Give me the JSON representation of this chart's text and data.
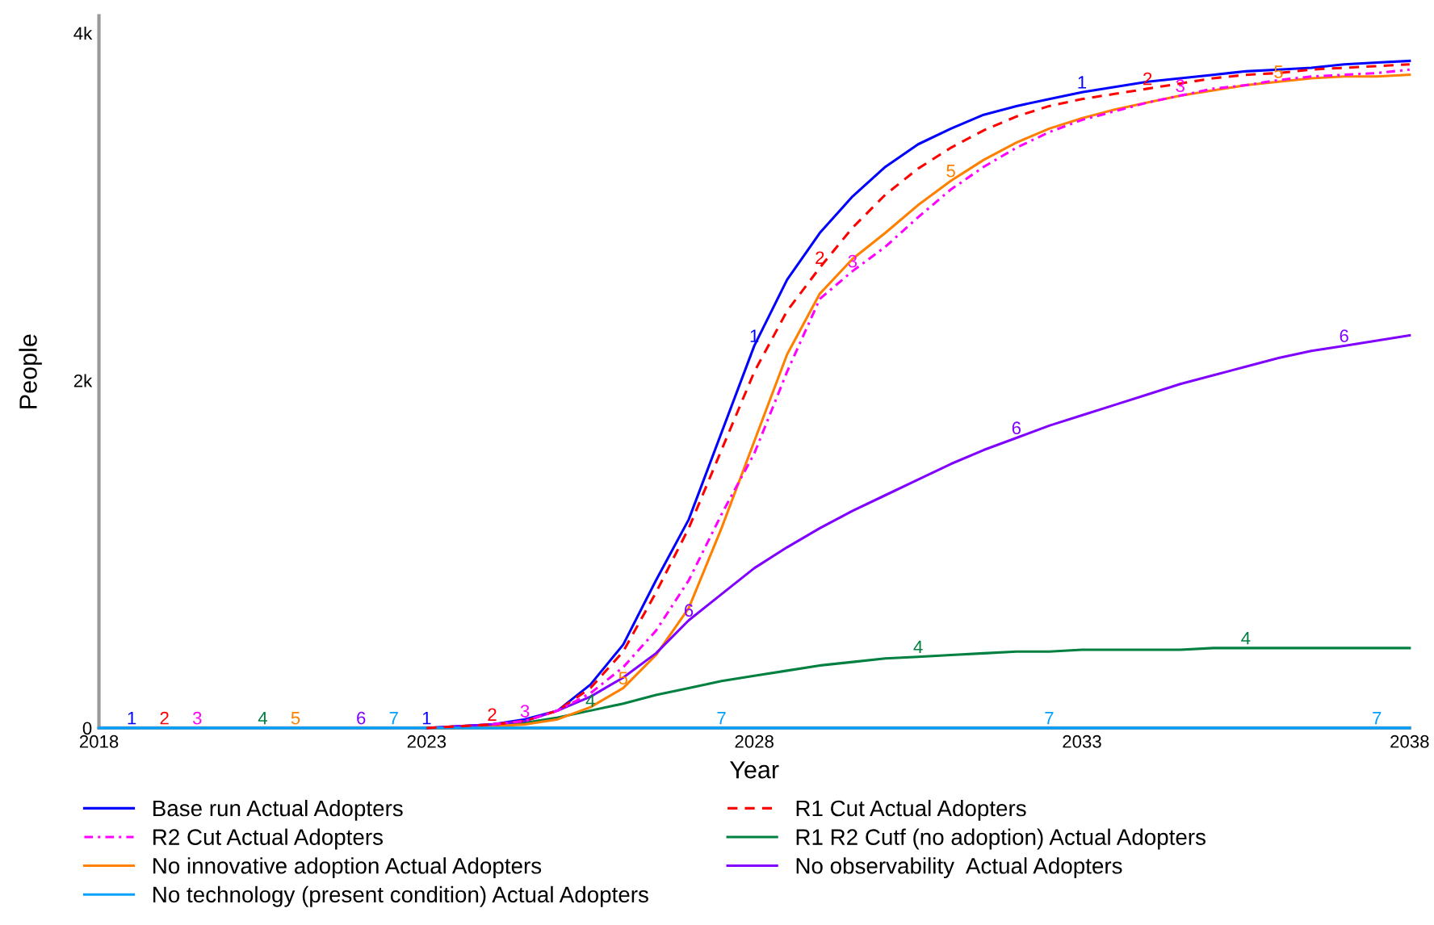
{
  "chart_data": {
    "type": "line",
    "xlabel": "Year",
    "ylabel": "People",
    "x": [
      2018,
      2018.5,
      2019,
      2019.5,
      2020,
      2020.5,
      2021,
      2021.5,
      2022,
      2022.5,
      2023,
      2023.5,
      2024,
      2024.5,
      2025,
      2025.5,
      2026,
      2026.5,
      2027,
      2027.5,
      2028,
      2028.5,
      2029,
      2029.5,
      2030,
      2030.5,
      2031,
      2031.5,
      2032,
      2032.5,
      2033,
      2033.5,
      2034,
      2034.5,
      2035,
      2035.5,
      2036,
      2036.5,
      2037,
      2037.5,
      2038
    ],
    "xlim": [
      2018,
      2038
    ],
    "xticks": [
      2018,
      2023,
      2028,
      2033,
      2038
    ],
    "ylim": [
      0,
      4100
    ],
    "yticks": [
      0,
      {
        "value": 2000,
        "label": "2k"
      },
      {
        "value": 4000,
        "label": "4k"
      }
    ],
    "grid": false,
    "legend": "bottom",
    "series": [
      {
        "name": "Base run Actual Adopters",
        "color": "#0000ff",
        "line_style": "solid",
        "values": [
          null,
          null,
          null,
          null,
          null,
          null,
          null,
          null,
          null,
          null,
          0,
          10,
          20,
          50,
          100,
          250,
          480,
          850,
          1200,
          1700,
          2200,
          2580,
          2850,
          3060,
          3230,
          3360,
          3450,
          3530,
          3580,
          3620,
          3660,
          3690,
          3720,
          3740,
          3760,
          3780,
          3790,
          3800,
          3820,
          3830,
          3840
        ]
      },
      {
        "name": "R1 Cut Actual Adopters",
        "color": "#ff0000",
        "line_style": "dashed",
        "values": [
          null,
          null,
          null,
          null,
          null,
          null,
          null,
          null,
          null,
          null,
          0,
          10,
          20,
          40,
          100,
          230,
          440,
          780,
          1150,
          1600,
          2050,
          2400,
          2650,
          2880,
          3070,
          3220,
          3340,
          3440,
          3520,
          3580,
          3620,
          3650,
          3680,
          3710,
          3740,
          3760,
          3770,
          3790,
          3800,
          3810,
          3820
        ]
      },
      {
        "name": "R2 Cut Actual Adopters",
        "color": "#ff00ff",
        "line_style": "dashdot",
        "values": [
          null,
          null,
          null,
          null,
          null,
          null,
          null,
          null,
          null,
          null,
          null,
          null,
          20,
          40,
          100,
          200,
          350,
          560,
          850,
          1230,
          1580,
          2050,
          2470,
          2630,
          2770,
          2940,
          3100,
          3230,
          3340,
          3430,
          3500,
          3550,
          3600,
          3640,
          3680,
          3700,
          3730,
          3750,
          3760,
          3770,
          3790
        ]
      },
      {
        "name": "R1 R2 Cutf (no adoption) Actual Adopters",
        "color": "#008040",
        "line_style": "solid",
        "values": [
          null,
          null,
          null,
          null,
          null,
          null,
          null,
          null,
          null,
          null,
          null,
          null,
          10,
          30,
          60,
          100,
          140,
          190,
          230,
          270,
          300,
          330,
          360,
          380,
          400,
          410,
          420,
          430,
          440,
          440,
          450,
          450,
          450,
          450,
          460,
          460,
          460,
          460,
          460,
          460,
          460
        ]
      },
      {
        "name": "No innovative adoption Actual Adopters",
        "color": "#ff8000",
        "line_style": "solid",
        "values": [
          null,
          null,
          null,
          null,
          null,
          null,
          null,
          null,
          null,
          null,
          0,
          0,
          10,
          20,
          50,
          120,
          230,
          420,
          690,
          1150,
          1650,
          2150,
          2500,
          2700,
          2850,
          3010,
          3150,
          3270,
          3370,
          3450,
          3510,
          3560,
          3600,
          3640,
          3670,
          3700,
          3720,
          3740,
          3750,
          3750,
          3760
        ]
      },
      {
        "name": "No observability  Actual Adopters",
        "color": "#8000ff",
        "line_style": "solid",
        "values": [
          null,
          null,
          null,
          null,
          null,
          null,
          null,
          null,
          null,
          null,
          0,
          10,
          20,
          40,
          100,
          180,
          290,
          430,
          620,
          770,
          920,
          1040,
          1150,
          1250,
          1340,
          1430,
          1520,
          1600,
          1670,
          1740,
          1800,
          1860,
          1920,
          1980,
          2030,
          2080,
          2130,
          2170,
          2200,
          2230,
          2260
        ]
      },
      {
        "name": "No technology (present condition) Actual Adopters",
        "color": "#00a0ff",
        "line_style": "solid",
        "values": [
          0,
          0,
          0,
          0,
          0,
          0,
          0,
          0,
          0,
          0,
          0,
          0,
          0,
          0,
          0,
          0,
          0,
          0,
          0,
          0,
          0,
          0,
          0,
          0,
          0,
          0,
          0,
          0,
          0,
          0,
          0,
          0,
          0,
          0,
          0,
          0,
          0,
          0,
          0,
          0,
          0
        ]
      }
    ],
    "annotations": [
      {
        "text": "1",
        "x": 2018.5,
        "y": 0
      },
      {
        "text": "1",
        "x": 2023,
        "y": 0
      },
      {
        "text": "1",
        "x": 2028,
        "y": 2200
      },
      {
        "text": "1",
        "x": 2033,
        "y": 3660
      },
      {
        "text": "2",
        "x": 2019,
        "y": 0
      },
      {
        "text": "2",
        "x": 2024,
        "y": 20
      },
      {
        "text": "2",
        "x": 2029,
        "y": 2650
      },
      {
        "text": "2",
        "x": 2034,
        "y": 3680
      },
      {
        "text": "3",
        "x": 2019.5,
        "y": 0
      },
      {
        "text": "3",
        "x": 2024.5,
        "y": 40
      },
      {
        "text": "3",
        "x": 2029.5,
        "y": 2630
      },
      {
        "text": "3",
        "x": 2034.5,
        "y": 3640
      },
      {
        "text": "4",
        "x": 2020.5,
        "y": 0
      },
      {
        "text": "4",
        "x": 2025.5,
        "y": 100
      },
      {
        "text": "4",
        "x": 2030.5,
        "y": 410
      },
      {
        "text": "4",
        "x": 2035.5,
        "y": 460
      },
      {
        "text": "5",
        "x": 2021,
        "y": 0
      },
      {
        "text": "5",
        "x": 2026,
        "y": 230
      },
      {
        "text": "5",
        "x": 2031,
        "y": 3150
      },
      {
        "text": "5",
        "x": 2036,
        "y": 3720
      },
      {
        "text": "6",
        "x": 2022,
        "y": 0
      },
      {
        "text": "6",
        "x": 2027,
        "y": 620
      },
      {
        "text": "6",
        "x": 2032,
        "y": 1670
      },
      {
        "text": "6",
        "x": 2037,
        "y": 2200
      },
      {
        "text": "7",
        "x": 2022.5,
        "y": 0
      },
      {
        "text": "7",
        "x": 2027.5,
        "y": 0
      },
      {
        "text": "7",
        "x": 2032.5,
        "y": 0
      },
      {
        "text": "7",
        "x": 2037.5,
        "y": 0
      }
    ]
  }
}
